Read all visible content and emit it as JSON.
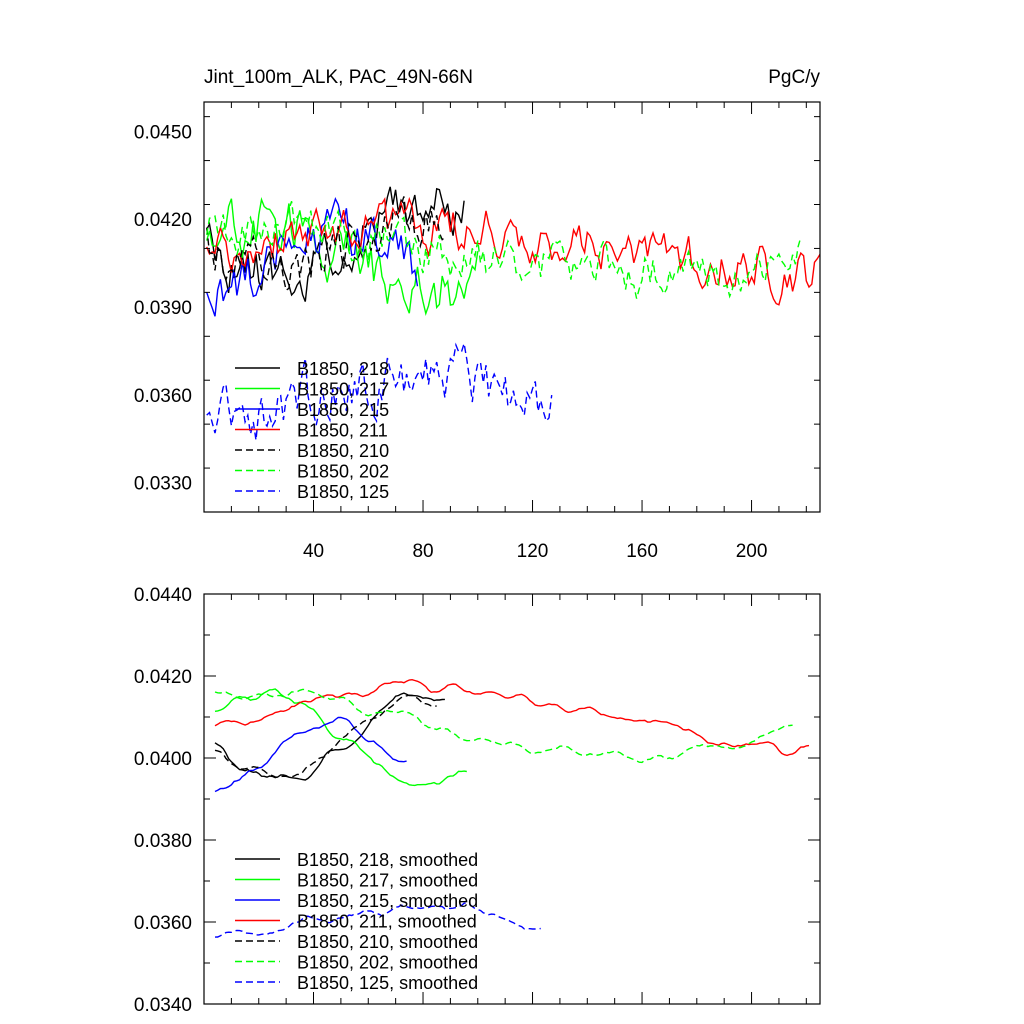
{
  "chart_data": [
    {
      "type": "line",
      "title_left": "Jint_100m_ALK, PAC_49N-66N",
      "title_right": "PgC/y",
      "xlim": [
        0,
        225
      ],
      "ylim": [
        0.032,
        0.046
      ],
      "xticks": [
        40,
        80,
        120,
        160,
        200
      ],
      "xtick_labels": [
        "40",
        "80",
        "120",
        "160",
        "200"
      ],
      "yticks": [
        0.033,
        0.036,
        0.039,
        0.042,
        0.045
      ],
      "ytick_labels": [
        "0.0330",
        "0.0360",
        "0.0390",
        "0.0420",
        "0.0450"
      ],
      "legend_position": "bottom-left",
      "series": [
        {
          "name": "B1850, 218",
          "color": "#000000",
          "dash": "solid",
          "length": 95,
          "base": 0.0412,
          "amp": 0.0011,
          "noise": 0.0014,
          "seed": 11,
          "drift": 0.0002
        },
        {
          "name": "B1850, 217",
          "color": "#00ff00",
          "dash": "solid",
          "length": 100,
          "base": 0.0409,
          "amp": 0.001,
          "noise": 0.0016,
          "seed": 23,
          "drift": -0.0003
        },
        {
          "name": "B1850, 215",
          "color": "#0000ff",
          "dash": "solid",
          "length": 78,
          "base": 0.0402,
          "amp": 0.001,
          "noise": 0.0015,
          "seed": 37,
          "drift": 0.0004
        },
        {
          "name": "B1850, 211",
          "color": "#ff0000",
          "dash": "solid",
          "length": 225,
          "base": 0.0412,
          "amp": 0.0006,
          "noise": 0.0013,
          "seed": 41,
          "drift": -0.0004
        },
        {
          "name": "B1850, 210",
          "color": "#000000",
          "dash": "dashed",
          "length": 88,
          "base": 0.0413,
          "amp": 0.001,
          "noise": 0.0014,
          "seed": 53,
          "drift": -0.0002
        },
        {
          "name": "B1850, 202",
          "color": "#00ff00",
          "dash": "dashed",
          "length": 218,
          "base": 0.0412,
          "amp": 0.0006,
          "noise": 0.0013,
          "seed": 67,
          "drift": -0.0006
        },
        {
          "name": "B1850, 125",
          "color": "#0000ff",
          "dash": "dashed",
          "length": 127,
          "base": 0.0358,
          "amp": 0.0008,
          "noise": 0.0016,
          "seed": 79,
          "drift": 0.0002
        }
      ]
    },
    {
      "type": "line",
      "xlim": [
        0,
        225
      ],
      "ylim": [
        0.034,
        0.044
      ],
      "xticks": [
        40,
        80,
        120,
        160,
        200
      ],
      "yticks": [
        0.034,
        0.036,
        0.038,
        0.04,
        0.042,
        0.044
      ],
      "ytick_labels": [
        "0.0340",
        "0.0360",
        "0.0380",
        "0.0400",
        "0.0420",
        "0.0440"
      ],
      "legend_position": "bottom-left",
      "series": [
        {
          "name": "B1850, 218, smoothed",
          "color": "#000000",
          "dash": "solid",
          "start": 4,
          "length": 88,
          "base": 0.0405,
          "amp": 0.001,
          "noise": 0.0004,
          "seed": 11
        },
        {
          "name": "B1850, 217, smoothed",
          "color": "#00ff00",
          "dash": "solid",
          "start": 4,
          "length": 96,
          "base": 0.0405,
          "amp": 0.0011,
          "noise": 0.0004,
          "seed": 23
        },
        {
          "name": "B1850, 215, smoothed",
          "color": "#0000ff",
          "dash": "solid",
          "start": 4,
          "length": 74,
          "base": 0.04,
          "amp": 0.0008,
          "noise": 0.0004,
          "seed": 37
        },
        {
          "name": "B1850, 211, smoothed",
          "color": "#ff0000",
          "dash": "solid",
          "start": 4,
          "length": 221,
          "base": 0.041,
          "amp": 0.0007,
          "noise": 0.0004,
          "seed": 41
        },
        {
          "name": "B1850, 210, smoothed",
          "color": "#000000",
          "dash": "dashed",
          "start": 4,
          "length": 85,
          "base": 0.0405,
          "amp": 0.001,
          "noise": 0.0004,
          "seed": 53
        },
        {
          "name": "B1850, 202, smoothed",
          "color": "#00ff00",
          "dash": "dashed",
          "start": 4,
          "length": 215,
          "base": 0.0408,
          "amp": 0.0008,
          "noise": 0.0004,
          "seed": 67
        },
        {
          "name": "B1850, 125, smoothed",
          "color": "#0000ff",
          "dash": "dashed",
          "start": 4,
          "length": 123,
          "base": 0.036,
          "amp": 0.0004,
          "noise": 0.0004,
          "seed": 79
        }
      ]
    }
  ]
}
